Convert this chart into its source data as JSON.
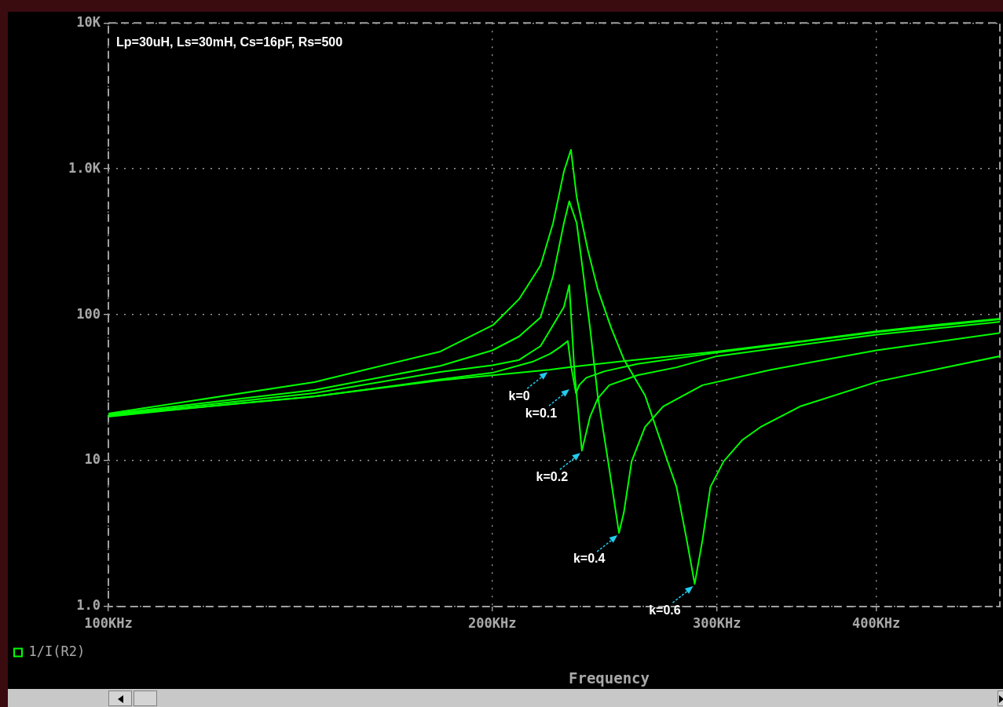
{
  "chart_data": {
    "type": "line",
    "title": "Lp=30uH, Ls=30mH, Cs=16pF, Rs=500",
    "xlabel": "Frequency",
    "log": "xy",
    "grid": true,
    "legend": "bottom left",
    "marker": "none",
    "line_style": "solid",
    "xlim": [
      100,
      500
    ],
    "xticks": [
      {
        "value": 100,
        "label": "100KHz"
      },
      {
        "value": 200,
        "label": "200KHz"
      },
      {
        "value": 300,
        "label": "300KHz"
      },
      {
        "value": 400,
        "label": "400KHz"
      }
    ],
    "ylim": [
      1,
      10000
    ],
    "yticks": [
      {
        "value": 1,
        "label": "1.0"
      },
      {
        "value": 10,
        "label": "10"
      },
      {
        "value": 100,
        "label": "100"
      },
      {
        "value": 1000,
        "label": "1.0K"
      },
      {
        "value": 10000,
        "label": "10K"
      }
    ],
    "series": [
      {
        "name": "1/I(R2)",
        "color": "#00ff00",
        "x": [
          100,
          125,
          145,
          182,
          200,
          221.6,
          231,
          250,
          300,
          350,
          400,
          450,
          500
        ],
        "values": [
          20,
          24.5,
          27.5,
          35.5,
          38.5,
          42,
          44,
          47.5,
          56,
          66,
          77,
          86,
          94
        ]
      },
      {
        "color": "#00ff00",
        "x": [
          100,
          145,
          182,
          200,
          215,
          222,
          226,
          229.2,
          230.5,
          232.6,
          234,
          237,
          245,
          260,
          300,
          400,
          500
        ],
        "values": [
          20.3,
          27.5,
          36,
          40,
          47.6,
          54,
          60,
          66,
          45,
          29,
          33,
          37,
          41,
          46,
          55,
          76,
          93
        ]
      },
      {
        "color": "#00ff00",
        "x": [
          100,
          145,
          182.1,
          200,
          209.9,
          218.2,
          223.2,
          227.6,
          229.8,
          232,
          235.1,
          238.6,
          241.9,
          247,
          259.8,
          278.9,
          300,
          400,
          500
        ],
        "values": [
          20.5,
          29,
          40.5,
          45,
          49,
          61,
          85,
          113,
          160,
          40,
          11.7,
          20,
          26.6,
          32.9,
          38.5,
          43.6,
          52,
          73,
          89.5
        ]
      },
      {
        "color": "#00ff00",
        "x": [
          100,
          145,
          182.1,
          200,
          209.9,
          218.2,
          223.2,
          227.6,
          229.8,
          232.9,
          235.8,
          238.6,
          241.9,
          246.5,
          250,
          251.4,
          253.6,
          257.2,
          263.5,
          272.2,
          292.3,
          330.7,
          400,
          500
        ],
        "values": [
          20.8,
          30.5,
          44.6,
          57,
          71,
          96,
          185,
          425,
          600,
          425,
          185,
          81,
          28,
          9.9,
          4.4,
          3.2,
          4.4,
          9.9,
          17,
          23.5,
          32.9,
          42,
          57,
          75
        ]
      },
      {
        "color": "#00ff00",
        "x": [
          100,
          145,
          182.1,
          200.3,
          209.9,
          218.2,
          223.2,
          227.6,
          230.5,
          232.9,
          237.6,
          241.9,
          247.9,
          253.6,
          263.5,
          272.2,
          278.9,
          284.1,
          288.2,
          292.3,
          296.5,
          303.7,
          313.9,
          324.6,
          348.5,
          401.8,
          500
        ],
        "values": [
          21,
          34.5,
          56,
          85,
          128,
          218,
          425,
          960,
          1350,
          640,
          280,
          150,
          81,
          49.5,
          28,
          12.2,
          6.6,
          2.86,
          1.43,
          2.86,
          6.6,
          9.9,
          13.8,
          17,
          23.5,
          35,
          52
        ]
      }
    ],
    "annotations": [
      {
        "text": "k=0",
        "x": 221.6,
        "y": 42
      },
      {
        "text": "k=0.1",
        "x": 230.5,
        "y": 32
      },
      {
        "text": "k=0.2",
        "x": 235.1,
        "y": 11.7
      },
      {
        "text": "k=0.4",
        "x": 251.4,
        "y": 3.2
      },
      {
        "text": "k=0.6",
        "x": 288.2,
        "y": 1.43
      }
    ]
  }
}
